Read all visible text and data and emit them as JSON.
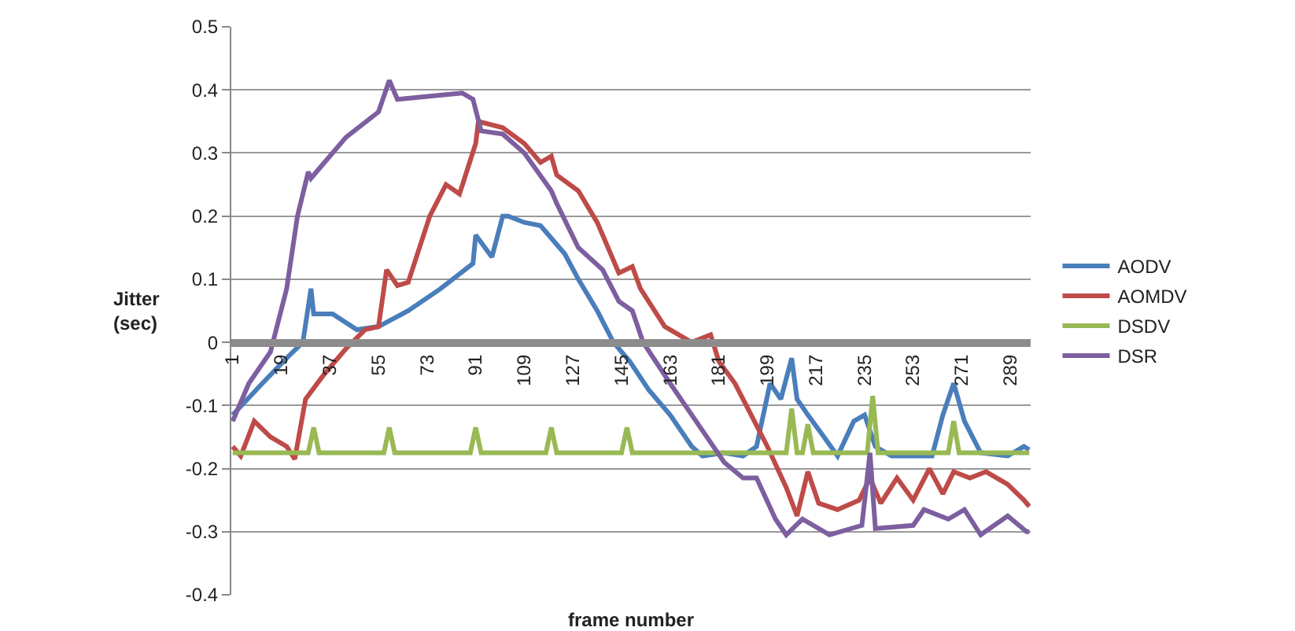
{
  "chart_data": {
    "type": "line",
    "xlabel": "frame number",
    "ylabel": "Jitter\n(sec)",
    "xlim": [
      0.5,
      296.5
    ],
    "xticks": [
      1,
      19,
      37,
      55,
      73,
      91,
      109,
      127,
      145,
      163,
      181,
      199,
      217,
      235,
      253,
      271,
      289
    ],
    "ylim": [
      -0.4,
      0.5
    ],
    "yticks": [
      -0.4,
      -0.3,
      -0.2,
      -0.1,
      0,
      0.1,
      0.2,
      0.3,
      0.4,
      0.5
    ],
    "grid": "y",
    "legend": "right",
    "line_style": "solid",
    "marker": "none",
    "series": [
      {
        "name": "AODV",
        "color": "#4a7ebb",
        "x": [
          1,
          12,
          21,
          27,
          30,
          31,
          38,
          47,
          55,
          66,
          78,
          90,
          91,
          97,
          101,
          103,
          109,
          115,
          119,
          124,
          129,
          136,
          142,
          148,
          155,
          163,
          171,
          175,
          183,
          190,
          195,
          200,
          204,
          208,
          210,
          214,
          220,
          225,
          231,
          235,
          239,
          245,
          260,
          264,
          268,
          272,
          278,
          288,
          294,
          296
        ],
        "values": [
          -0.115,
          -0.065,
          -0.025,
          0,
          0.085,
          0.045,
          0.045,
          0.02,
          0.025,
          0.05,
          0.085,
          0.125,
          0.17,
          0.135,
          0.2,
          0.2,
          0.19,
          0.185,
          0.165,
          0.14,
          0.1,
          0.05,
          0,
          -0.03,
          -0.075,
          -0.115,
          -0.165,
          -0.18,
          -0.175,
          -0.18,
          -0.165,
          -0.065,
          -0.09,
          -0.025,
          -0.09,
          -0.115,
          -0.15,
          -0.18,
          -0.125,
          -0.115,
          -0.165,
          -0.18,
          -0.18,
          -0.115,
          -0.065,
          -0.125,
          -0.175,
          -0.18,
          -0.165,
          -0.17
        ]
      },
      {
        "name": "AOMDV",
        "color": "#be4b48",
        "x": [
          1,
          4,
          9,
          15,
          21,
          24,
          28,
          35,
          43,
          50,
          55,
          58,
          62,
          66,
          74,
          80,
          85,
          88,
          91,
          92,
          101,
          109,
          115,
          119,
          121,
          129,
          136,
          144,
          149,
          152,
          161,
          171,
          178,
          181,
          187,
          199,
          206,
          210,
          214,
          218,
          225,
          233,
          237,
          241,
          247,
          253,
          259,
          264,
          268,
          274,
          280,
          288,
          294,
          296
        ],
        "values": [
          -0.165,
          -0.18,
          -0.125,
          -0.15,
          -0.165,
          -0.185,
          -0.09,
          -0.05,
          -0.01,
          0.02,
          0.025,
          0.115,
          0.09,
          0.095,
          0.2,
          0.25,
          0.235,
          0.275,
          0.315,
          0.35,
          0.34,
          0.315,
          0.285,
          0.295,
          0.265,
          0.24,
          0.19,
          0.11,
          0.12,
          0.085,
          0.025,
          0,
          0.012,
          -0.03,
          -0.065,
          -0.165,
          -0.23,
          -0.275,
          -0.205,
          -0.255,
          -0.265,
          -0.25,
          -0.215,
          -0.255,
          -0.215,
          -0.25,
          -0.2,
          -0.24,
          -0.205,
          -0.215,
          -0.205,
          -0.225,
          -0.25,
          -0.26
        ]
      },
      {
        "name": "DSDV",
        "color": "#98b954",
        "x": [
          1,
          29,
          31,
          33,
          57,
          59,
          61,
          89,
          91,
          93,
          117,
          119,
          121,
          145,
          147,
          149,
          206,
          208,
          210,
          212,
          214,
          216,
          236,
          238,
          240,
          266,
          268,
          270,
          296
        ],
        "values": [
          -0.175,
          -0.175,
          -0.135,
          -0.175,
          -0.175,
          -0.135,
          -0.175,
          -0.175,
          -0.135,
          -0.175,
          -0.175,
          -0.135,
          -0.175,
          -0.175,
          -0.135,
          -0.175,
          -0.175,
          -0.105,
          -0.175,
          -0.175,
          -0.13,
          -0.175,
          -0.175,
          -0.085,
          -0.175,
          -0.175,
          -0.125,
          -0.175,
          -0.175
        ]
      },
      {
        "name": "DSR",
        "color": "#7d5fa0",
        "x": [
          1,
          7,
          15,
          21,
          25,
          29,
          30,
          43,
          55,
          59,
          62,
          74,
          86,
          90,
          93,
          101,
          109,
          119,
          121,
          129,
          138,
          144,
          149,
          153,
          163,
          175,
          183,
          190,
          195,
          202,
          206,
          212,
          222,
          234,
          237,
          239,
          253,
          257,
          266,
          272,
          278,
          288,
          295,
          296
        ],
        "values": [
          -0.125,
          -0.065,
          -0.015,
          0.085,
          0.2,
          0.27,
          0.26,
          0.325,
          0.365,
          0.415,
          0.385,
          0.39,
          0.395,
          0.385,
          0.335,
          0.33,
          0.3,
          0.24,
          0.22,
          0.15,
          0.115,
          0.065,
          0.05,
          0,
          -0.065,
          -0.14,
          -0.19,
          -0.215,
          -0.215,
          -0.28,
          -0.305,
          -0.28,
          -0.305,
          -0.29,
          -0.175,
          -0.295,
          -0.29,
          -0.265,
          -0.28,
          -0.265,
          -0.305,
          -0.275,
          -0.3,
          -0.3
        ]
      }
    ]
  }
}
